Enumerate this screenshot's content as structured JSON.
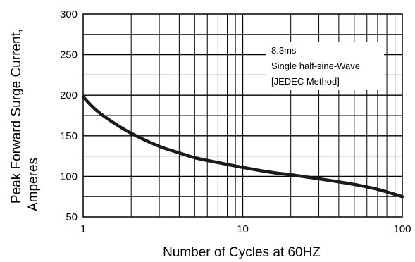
{
  "chart_data": {
    "type": "line",
    "title": "",
    "xlabel": "Number of Cycles at 60HZ",
    "ylabel": [
      "Peak Forward Surge Current,",
      "Amperes"
    ],
    "x_scale": "log",
    "xlim": [
      1,
      100
    ],
    "ylim": [
      50,
      300
    ],
    "x_ticks": [
      "1",
      "10",
      "100"
    ],
    "y_ticks": [
      "300",
      "250",
      "200",
      "150",
      "100",
      "50"
    ],
    "grid": true,
    "annotation": [
      "8.3ms",
      "Single half-sine-Wave",
      "[JEDEC Method]"
    ],
    "series": [
      {
        "x": [
          1,
          1.2,
          1.5,
          2,
          3,
          4,
          5,
          7,
          10,
          15,
          20,
          30,
          50,
          70,
          100
        ],
        "y": [
          198,
          182,
          168,
          153,
          137,
          129,
          123,
          117,
          111,
          105,
          102,
          97,
          90,
          84,
          75
        ]
      }
    ]
  }
}
